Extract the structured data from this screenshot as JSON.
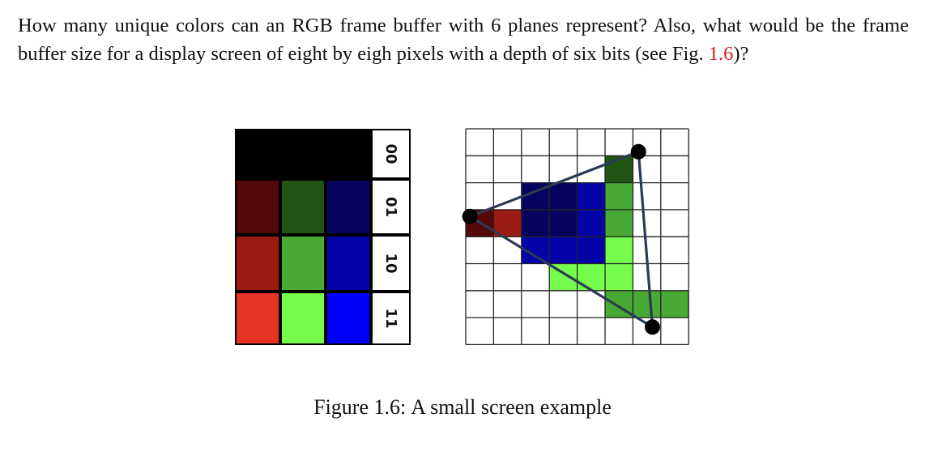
{
  "question": {
    "text_before_ref": "How many unique colors can an RGB frame buffer with 6 planes represent? Also, what would be the frame buffer size for a display screen of eight by eigh pixels with a depth of six bits (see Fig. ",
    "ref": "1.6",
    "text_after_ref": ")?"
  },
  "figure": {
    "caption_label": "Figure 1.6:",
    "caption_text": "A small screen example",
    "palette": {
      "level_labels": [
        "00",
        "01",
        "10",
        "11"
      ],
      "rows": [
        [
          "#000000",
          "#000000",
          "#000000"
        ],
        [
          "#540808",
          "#225514",
          "#050560"
        ],
        [
          "#9b1c13",
          "#49a935",
          "#0404a8"
        ],
        [
          "#e73425",
          "#76fc4c",
          "#0000fc"
        ]
      ]
    },
    "pixel_grid": {
      "columns": 8,
      "rows": 8,
      "filled_cells": [
        {
          "col": 5,
          "row": 1,
          "color": "#225514"
        },
        {
          "col": 2,
          "row": 2,
          "color": "#050560"
        },
        {
          "col": 3,
          "row": 2,
          "color": "#050560"
        },
        {
          "col": 4,
          "row": 2,
          "color": "#0404a8"
        },
        {
          "col": 5,
          "row": 2,
          "color": "#49a935"
        },
        {
          "col": 0,
          "row": 3,
          "color": "#540808"
        },
        {
          "col": 1,
          "row": 3,
          "color": "#9b1c13"
        },
        {
          "col": 2,
          "row": 3,
          "color": "#050560"
        },
        {
          "col": 3,
          "row": 3,
          "color": "#050560"
        },
        {
          "col": 4,
          "row": 3,
          "color": "#0404a8"
        },
        {
          "col": 5,
          "row": 3,
          "color": "#49a935"
        },
        {
          "col": 2,
          "row": 4,
          "color": "#0404a8"
        },
        {
          "col": 3,
          "row": 4,
          "color": "#0404a8"
        },
        {
          "col": 4,
          "row": 4,
          "color": "#0404a8"
        },
        {
          "col": 5,
          "row": 4,
          "color": "#76fc4c"
        },
        {
          "col": 3,
          "row": 5,
          "color": "#76fc4c"
        },
        {
          "col": 4,
          "row": 5,
          "color": "#76fc4c"
        },
        {
          "col": 5,
          "row": 5,
          "color": "#76fc4c"
        },
        {
          "col": 5,
          "row": 6,
          "color": "#49a935"
        },
        {
          "col": 6,
          "row": 6,
          "color": "#49a935"
        },
        {
          "col": 7,
          "row": 6,
          "color": "#49a935"
        }
      ],
      "triangle_vertices": [
        {
          "col": 0.15,
          "row": 3.25
        },
        {
          "col": 6.2,
          "row": 0.85
        },
        {
          "col": 6.7,
          "row": 7.35
        }
      ],
      "edge_color": "#2a3a55",
      "vertex_color": "#000000"
    }
  }
}
